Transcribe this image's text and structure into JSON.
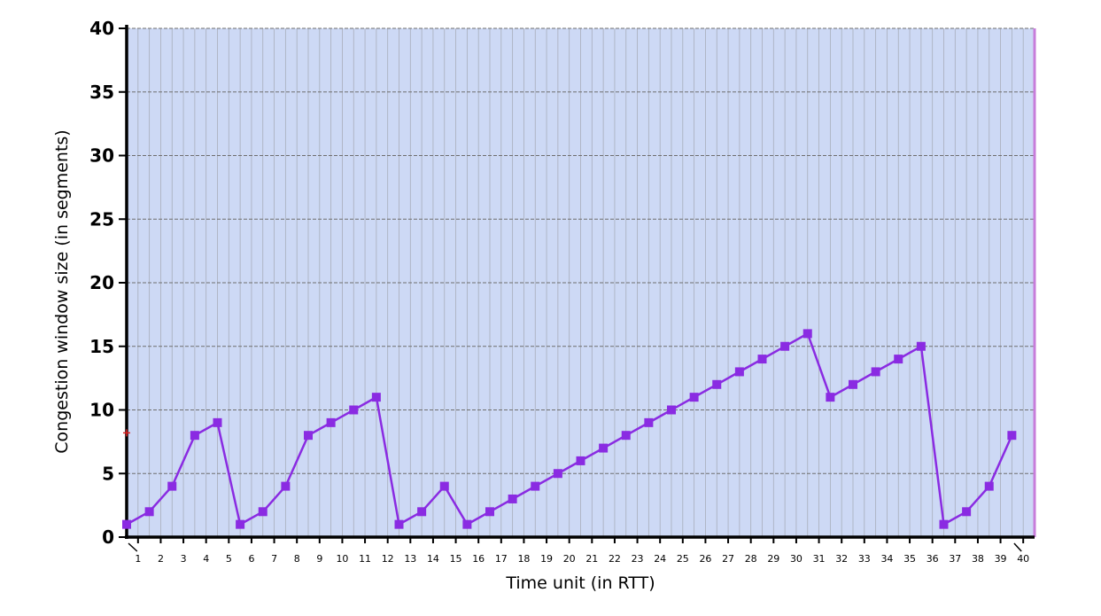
{
  "chart_data": {
    "type": "line",
    "title": "",
    "xlabel": "Time unit (in RTT)",
    "ylabel": "Congestion window size (in segments)",
    "xlim": [
      0.5,
      40.5
    ],
    "ylim": [
      0,
      40
    ],
    "y_ticks": [
      0,
      5,
      10,
      15,
      20,
      25,
      30,
      35,
      40
    ],
    "x_ticks": [
      1,
      2,
      3,
      4,
      5,
      6,
      7,
      8,
      9,
      10,
      11,
      12,
      13,
      14,
      15,
      16,
      17,
      18,
      19,
      20,
      21,
      22,
      23,
      24,
      25,
      26,
      27,
      28,
      29,
      30,
      31,
      32,
      33,
      34,
      35,
      36,
      37,
      38,
      39,
      40
    ],
    "grid": true,
    "legend": "none",
    "series": [
      {
        "color": "#8a2be2",
        "x": [
          0.5,
          1.5,
          2.5,
          3.5,
          4.5,
          5.5,
          6.5,
          7.5,
          8.5,
          9.5,
          10.5,
          11.5,
          12.5,
          13.5,
          14.5,
          15.5,
          16.5,
          17.5,
          18.5,
          19.5,
          20.5,
          21.5,
          22.5,
          23.5,
          24.5,
          25.5,
          26.5,
          27.5,
          28.5,
          29.5,
          30.5,
          31.5,
          32.5,
          33.5,
          34.5,
          35.5,
          36.5,
          37.5,
          38.5,
          39.5
        ],
        "y": [
          1,
          2,
          4,
          8,
          9,
          1,
          2,
          4,
          8,
          9,
          10,
          11,
          1,
          2,
          4,
          1,
          2,
          3,
          4,
          5,
          6,
          7,
          8,
          9,
          10,
          11,
          12,
          13,
          14,
          15,
          16,
          11,
          12,
          13,
          14,
          15,
          1,
          2,
          4,
          8
        ]
      }
    ],
    "colors": {
      "plot_background": "#cdd9f5",
      "grid_line": "#8a8a8a",
      "axis": "#000000",
      "right_border": "#c77dda",
      "marker_accent": "#e02020"
    }
  }
}
